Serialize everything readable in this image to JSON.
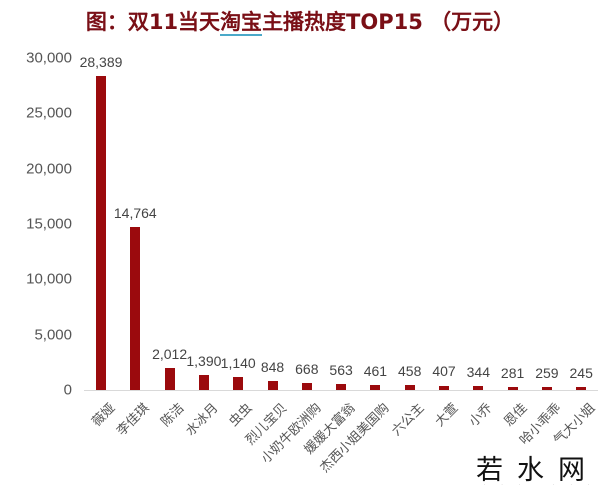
{
  "chart_data": {
    "type": "bar",
    "title": "图：双11当天淘宝主播热度TOP15 （万元）",
    "title_parts": {
      "prefix": "图：双11当天",
      "underlined": "淘宝",
      "suffix": "主播热度TOP15 （万元）"
    },
    "xlabel": "",
    "ylabel": "",
    "ylim": [
      0,
      30000
    ],
    "yticks": [
      "30,000",
      "25,000",
      "20,000",
      "15,000",
      "10,000",
      "5,000",
      "0"
    ],
    "grid": false,
    "legend": null,
    "bar_color": "#9b0a0d",
    "title_color": "#7a0f16",
    "categories": [
      "薇娅",
      "李佳琪",
      "陈洁",
      "水冰月",
      "虫虫",
      "烈儿宝贝",
      "小奶牛欧洲购",
      "媛媛大富翁",
      "杰西小姐美国购",
      "六公主",
      "大萱",
      "小乔",
      "恩佳",
      "哈小乖乖",
      "气大小姐"
    ],
    "values": [
      28389,
      14764,
      2012,
      1390,
      1140,
      848,
      668,
      563,
      461,
      458,
      407,
      344,
      281,
      259,
      245
    ],
    "value_labels": [
      "28,389",
      "14,764",
      "2,012",
      "1,390",
      "1,140",
      "848",
      "668",
      "563",
      "461",
      "458",
      "407",
      "344",
      "281",
      "259",
      "245"
    ]
  },
  "watermark": {
    "text": "若水网",
    "subtext": "··· ··· ···"
  }
}
